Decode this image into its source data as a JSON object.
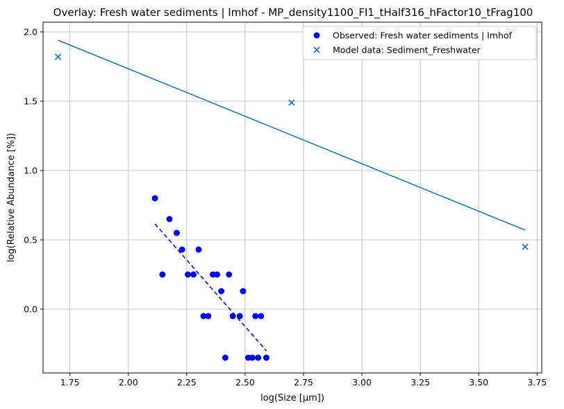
{
  "chart_data": {
    "type": "scatter",
    "title": "Overlay: Fresh water sediments | Imhof - MP_density1100_FI1_tHalf316_hFactor10_tFrag100",
    "xlabel": "log(Size [µm])",
    "ylabel": "log(Relative Abundance [%])",
    "xlim": [
      1.635,
      3.77
    ],
    "ylim": [
      -0.46,
      2.07
    ],
    "xticks": [
      "1.75",
      "2.00",
      "2.25",
      "2.50",
      "2.75",
      "3.00",
      "3.25",
      "3.50",
      "3.75"
    ],
    "yticks": [
      "0.0",
      "0.5",
      "1.0",
      "1.5",
      "2.0"
    ],
    "grid": true,
    "legend_position": "top-right",
    "colors": {
      "observed": "#0000ff",
      "model": "#1f77b4"
    },
    "series": [
      {
        "name": "Observed: Fresh water sediments | Imhof",
        "kind": "scatter",
        "marker": "circle",
        "x": [
          2.114,
          2.146,
          2.176,
          2.207,
          2.23,
          2.255,
          2.279,
          2.301,
          2.322,
          2.342,
          2.362,
          2.38,
          2.398,
          2.415,
          2.431,
          2.447,
          2.477,
          2.491,
          2.513,
          2.531,
          2.544,
          2.556,
          2.568,
          2.591
        ],
        "y": [
          0.8,
          0.25,
          0.65,
          0.55,
          0.43,
          0.25,
          0.25,
          0.43,
          -0.05,
          -0.05,
          0.25,
          0.25,
          0.13,
          -0.35,
          0.25,
          -0.05,
          -0.05,
          0.13,
          -0.35,
          -0.35,
          -0.05,
          -0.35,
          -0.05,
          -0.35
        ]
      },
      {
        "name": "Model data: Sediment_Freshwater",
        "kind": "scatter",
        "marker": "x",
        "x": [
          1.699,
          2.699,
          3.699
        ],
        "y": [
          1.82,
          1.49,
          0.45
        ]
      },
      {
        "kind": "line",
        "style": "dashed",
        "x": [
          2.114,
          2.591
        ],
        "y": [
          0.615,
          -0.3
        ]
      },
      {
        "kind": "line",
        "style": "solid",
        "x": [
          1.699,
          3.699
        ],
        "y": [
          1.94,
          0.57
        ]
      }
    ]
  }
}
